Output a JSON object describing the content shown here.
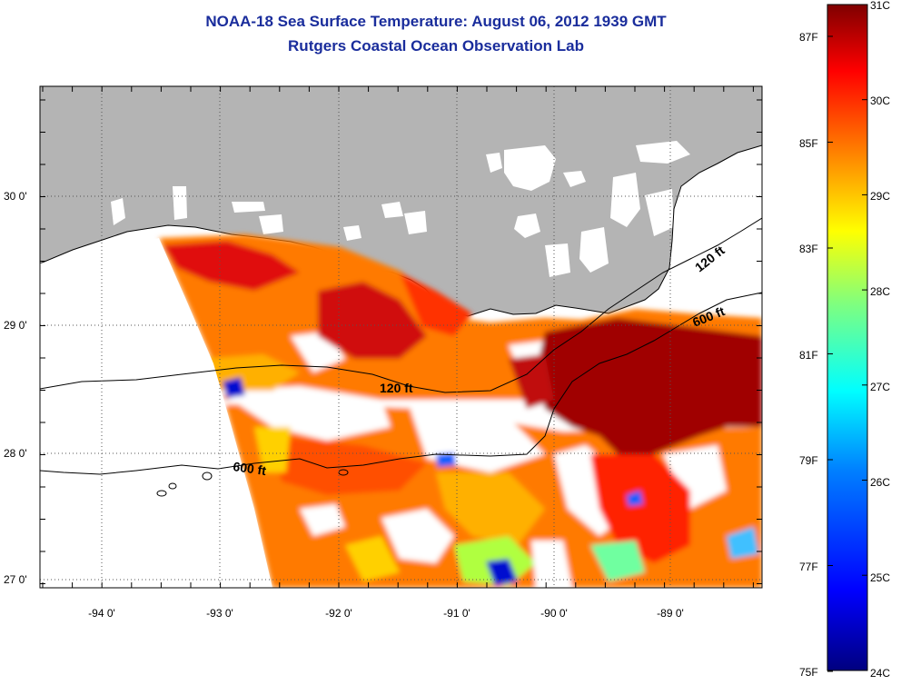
{
  "header": {
    "title": "NOAA-18 Sea Surface Temperature:  August 06, 2012 1939 GMT",
    "subtitle": "Rutgers Coastal Ocean Observation Lab"
  },
  "map": {
    "lat_ticks": [
      "30 0'",
      "29 0'",
      "28 0'",
      "27 0'"
    ],
    "lon_ticks": [
      "-94 0'",
      "-93 0'",
      "-92 0'",
      "-91 0'",
      "-90 0'",
      "-89 0'"
    ],
    "contours": [
      {
        "label": "120 ft"
      },
      {
        "label": "120 ft"
      },
      {
        "label": "600 ft"
      },
      {
        "label": "600 ft"
      }
    ],
    "colors": {
      "land": "#b4b4b4",
      "ocean_no_data": "#ffffff"
    }
  },
  "colorbar": {
    "celsius": [
      "31C",
      "30C",
      "29C",
      "28C",
      "27C",
      "26C",
      "25C",
      "24C"
    ],
    "fahrenheit": [
      "87F",
      "85F",
      "83F",
      "81F",
      "79F",
      "77F",
      "75F"
    ],
    "colors": [
      "#00007f",
      "#0000ff",
      "#007fff",
      "#00ffff",
      "#7fff7f",
      "#ffff00",
      "#ff7f00",
      "#ff0000",
      "#7f0000"
    ]
  }
}
